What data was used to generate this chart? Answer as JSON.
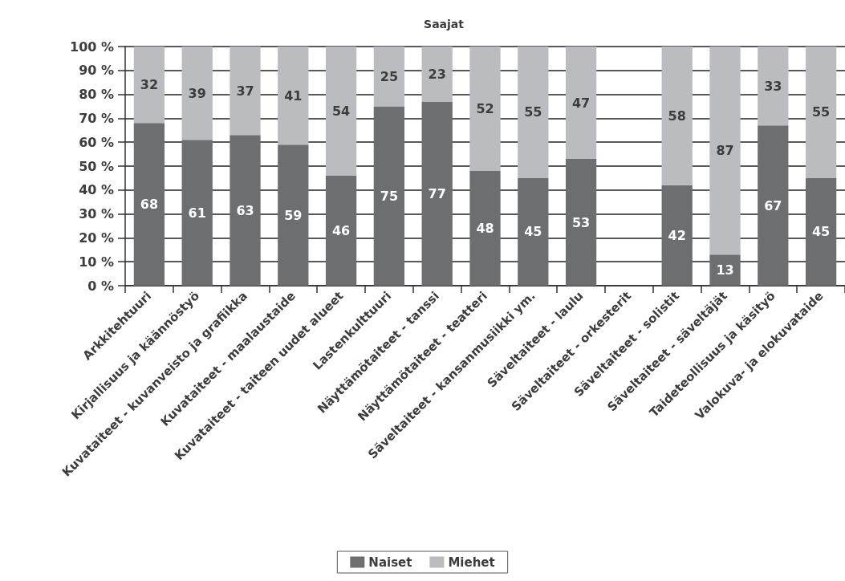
{
  "chart_data": {
    "type": "bar",
    "title": "Saajat",
    "categories": [
      "Arkkitehtuuri",
      "Kirjallisuus ja käännöstyö",
      "Kuvataiteet - kuvanveisto ja grafiikka",
      "Kuvataiteet - maalaustaide",
      "Kuvataiteet - taiteen uudet alueet",
      "Lastenkulttuuri",
      "Näyttämötaiteet - tanssi",
      "Näyttämötaiteet - teatteri",
      "Säveltaiteet - kansanmusiikki ym.",
      "Säveltaiteet - laulu",
      "Säveltaiteet - orkesterit",
      "Säveltaiteet - solistit",
      "Säveltaiteet - säveltäjät",
      "Taideteollisuus ja käsityö",
      "Valokuva- ja elokuvataide"
    ],
    "series": [
      {
        "name": "Naiset",
        "color": "#6d6e70",
        "values": [
          68,
          61,
          63,
          59,
          46,
          75,
          77,
          48,
          45,
          53,
          null,
          42,
          13,
          67,
          45
        ]
      },
      {
        "name": "Miehet",
        "color": "#bbbcbf",
        "values": [
          32,
          39,
          37,
          41,
          54,
          25,
          23,
          52,
          55,
          47,
          null,
          58,
          87,
          33,
          55
        ]
      }
    ],
    "stacked": true,
    "data_labels": true,
    "ylim": [
      0,
      100
    ],
    "yticks": [
      {
        "value": 0,
        "label": "0 %"
      },
      {
        "value": 10,
        "label": "10 %"
      },
      {
        "value": 20,
        "label": "20 %"
      },
      {
        "value": 30,
        "label": "30 %"
      },
      {
        "value": 40,
        "label": "40 %"
      },
      {
        "value": 50,
        "label": "50 %"
      },
      {
        "value": 60,
        "label": "60 %"
      },
      {
        "value": 70,
        "label": "70 %"
      },
      {
        "value": 80,
        "label": "80 %"
      },
      {
        "value": 90,
        "label": "90 %"
      },
      {
        "value": 100,
        "label": "100 %"
      }
    ],
    "grid": "y",
    "legend": "bottom"
  }
}
